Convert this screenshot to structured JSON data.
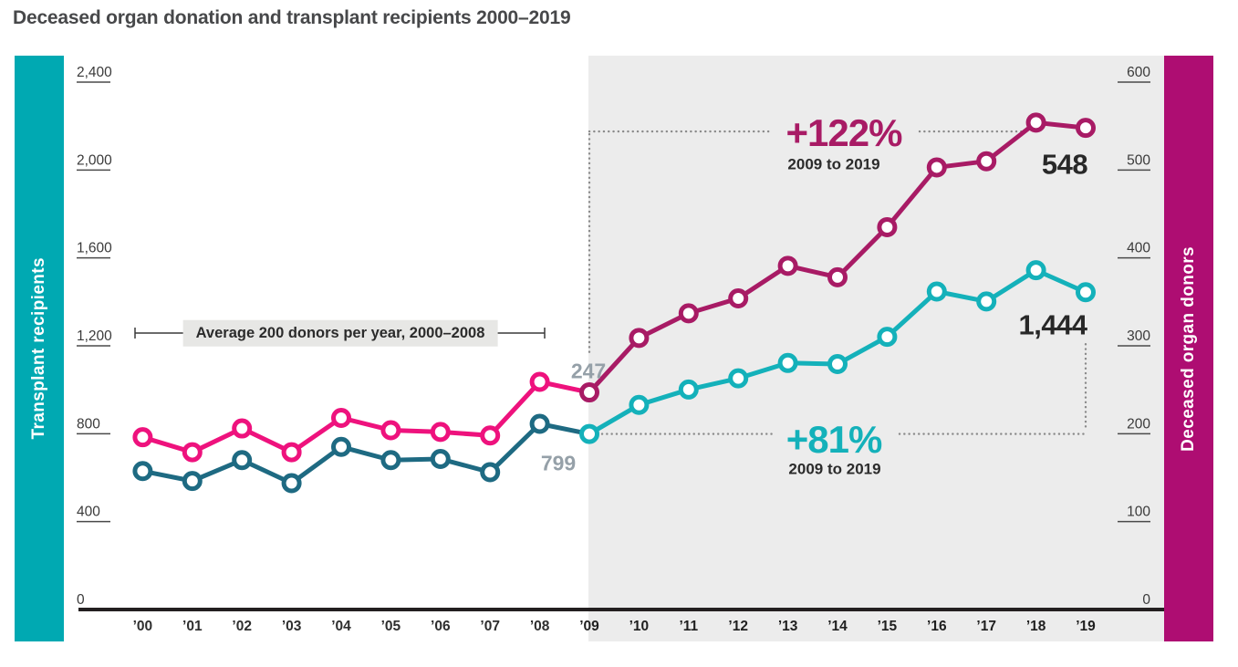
{
  "title": "Deceased organ donation and transplant recipients 2000–2019",
  "bands": {
    "left_label": "Transplant recipients",
    "right_label": "Deceased organ donors"
  },
  "axes": {
    "left": {
      "tick_labels": [
        "2,400",
        "2,000",
        "1,600",
        "1,200",
        "800",
        "400",
        "0"
      ],
      "tick_values": [
        2400,
        2000,
        1600,
        1200,
        800,
        400,
        0
      ]
    },
    "right": {
      "tick_labels": [
        "600",
        "500",
        "400",
        "300",
        "200",
        "100",
        "0"
      ],
      "tick_values": [
        600,
        500,
        400,
        300,
        200,
        100,
        0
      ]
    },
    "x": {
      "tick_labels": [
        "’00",
        "’01",
        "’02",
        "’03",
        "’04",
        "’05",
        "’06",
        "’07",
        "’08",
        "’09",
        "’10",
        "’11",
        "’12",
        "’13",
        "’14",
        "’15",
        "’16",
        "’17",
        "’18",
        "’19"
      ],
      "bold_from_index": 9
    }
  },
  "annotations": {
    "average_label": "Average 200 donors per year, 2000–2008",
    "donors_change": "+122%",
    "donors_change_period": "2009 to 2019",
    "donors_2009": "247",
    "donors_2019": "548",
    "recipients_change": "+81%",
    "recipients_change_period": "2009 to 2019",
    "recipients_2009": "799",
    "recipients_2019": "1,444"
  },
  "colors": {
    "teal_band": "#00a9b2",
    "magenta_band": "#ae0d72",
    "teal_line": "#14b1ba",
    "blue_line": "#1e6a82",
    "pink_line": "#ee127d",
    "dark_magenta_line": "#a81b65",
    "highlight_bg": "#ececec",
    "gray_label_text": "#95a0a8",
    "dotted_line": "#8a8a8a",
    "axis_line": "#231f20",
    "dark_text": "#2b2b2b"
  },
  "chart_data": {
    "type": "line",
    "x": [
      2000,
      2001,
      2002,
      2003,
      2004,
      2005,
      2006,
      2007,
      2008,
      2009,
      2010,
      2011,
      2012,
      2013,
      2014,
      2015,
      2016,
      2017,
      2018,
      2019
    ],
    "highlight_from_year": 2009,
    "left_ylim": [
      0,
      2400
    ],
    "right_ylim": [
      0,
      600
    ],
    "series": [
      {
        "name": "Deceased organ donors",
        "axis": "right",
        "color_2000_2008": "#ee127d",
        "color_2009_2019": "#a81b65",
        "values": [
          196,
          179,
          206,
          179,
          218,
          204,
          202,
          198,
          259,
          247,
          309,
          337,
          354,
          391,
          378,
          435,
          503,
          510,
          554,
          548
        ]
      },
      {
        "name": "Transplant recipients",
        "axis": "left",
        "color_2000_2008": "#1e6a82",
        "color_2009_2019": "#14b1ba",
        "values": [
          630,
          585,
          680,
          575,
          740,
          680,
          685,
          625,
          845,
          799,
          931,
          1001,
          1052,
          1122,
          1117,
          1241,
          1447,
          1402,
          1544,
          1444
        ]
      }
    ]
  }
}
